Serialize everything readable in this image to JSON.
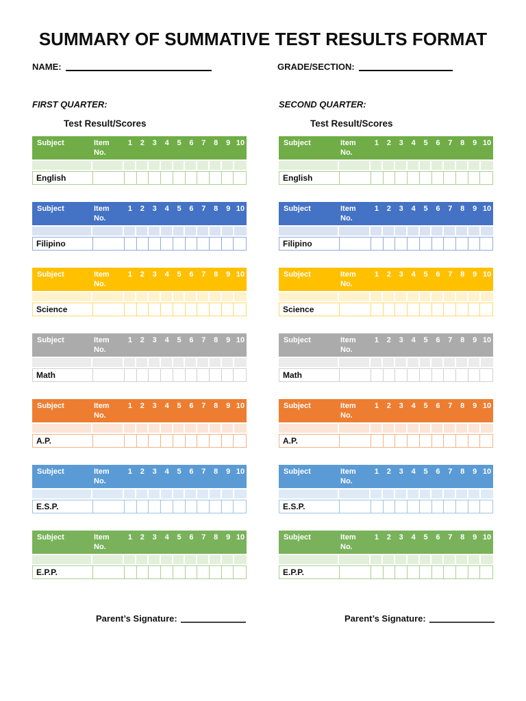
{
  "document": {
    "title": "SUMMARY OF SUMMATIVE TEST RESULTS FORMAT",
    "name_label": "NAME:",
    "grade_section_label": "GRADE/SECTION:",
    "parents_signature_label": "Parent’s Signature:"
  },
  "quarters": [
    {
      "label": "FIRST QUARTER:",
      "scores_heading": "Test Result/Scores"
    },
    {
      "label": "SECOND QUARTER:",
      "scores_heading": "Test Result/Scores"
    }
  ],
  "table_headers": {
    "subject": "Subject",
    "item_no": "Item No.",
    "item_numbers": [
      "1",
      "2",
      "3",
      "4",
      "5",
      "6",
      "7",
      "8",
      "9",
      "10"
    ]
  },
  "subjects": [
    {
      "name": "English",
      "header_color": "#70AD47",
      "tint_color": "#E2EFDA",
      "border_color": "#A9D18E"
    },
    {
      "name": "Filipino",
      "header_color": "#4472C4",
      "tint_color": "#DAE3F3",
      "border_color": "#8FAADC"
    },
    {
      "name": "Science",
      "header_color": "#FFC000",
      "tint_color": "#FFF2CC",
      "border_color": "#FFD966"
    },
    {
      "name": "Math",
      "header_color": "#ABABAB",
      "tint_color": "#EBEBEB",
      "border_color": "#D0D0D0"
    },
    {
      "name": "A.P.",
      "header_color": "#ED7D31",
      "tint_color": "#FBE5D6",
      "border_color": "#F4B183"
    },
    {
      "name": "E.S.P.",
      "header_color": "#5B9BD5",
      "tint_color": "#DEEBF7",
      "border_color": "#9DC3E6"
    },
    {
      "name": "E.P.P.",
      "header_color": "#79B25B",
      "tint_color": "#E2EFDA",
      "border_color": "#A9D18E"
    }
  ]
}
